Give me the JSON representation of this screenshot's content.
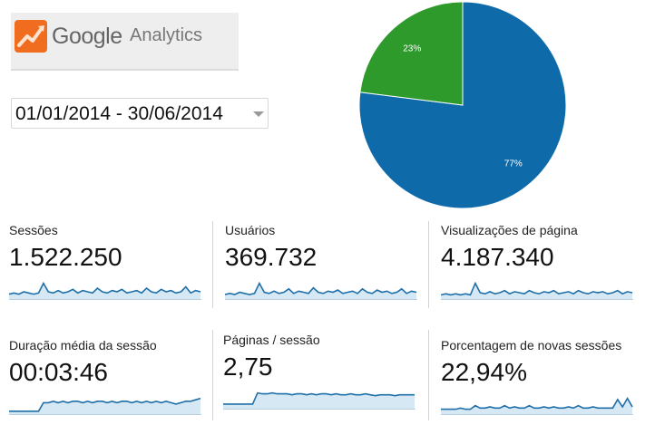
{
  "logo": {
    "google": "Google",
    "analytics": "Analytics"
  },
  "date_range": {
    "value": "01/01/2014 - 30/06/2014"
  },
  "pie": {
    "slices": [
      {
        "label": "77%",
        "value": 77,
        "color": "#0f6aaa"
      },
      {
        "label": "23%",
        "value": 23,
        "color": "#2e9a2b"
      }
    ]
  },
  "metrics": [
    {
      "label": "Sessões",
      "value": "1.522.250",
      "spark": [
        4,
        5,
        4,
        6,
        5,
        4,
        5,
        13,
        6,
        5,
        7,
        5,
        6,
        8,
        5,
        7,
        6,
        5,
        9,
        6,
        5,
        7,
        6,
        8,
        5,
        6,
        7,
        5,
        9,
        6,
        5,
        8,
        6,
        7,
        5,
        6,
        10,
        5,
        7,
        6
      ]
    },
    {
      "label": "Usuários",
      "value": "369.732",
      "spark": [
        4,
        5,
        4,
        6,
        5,
        4,
        5,
        14,
        6,
        5,
        7,
        5,
        6,
        9,
        5,
        7,
        6,
        5,
        10,
        6,
        5,
        7,
        6,
        8,
        5,
        6,
        7,
        5,
        9,
        6,
        5,
        8,
        6,
        7,
        5,
        6,
        9,
        5,
        7,
        6
      ]
    },
    {
      "label": "Visualizações de página",
      "value": "4.187.340",
      "spark": [
        4,
        5,
        4,
        5,
        4,
        5,
        4,
        15,
        6,
        5,
        7,
        5,
        6,
        8,
        5,
        7,
        6,
        5,
        8,
        6,
        5,
        7,
        6,
        8,
        5,
        6,
        7,
        5,
        8,
        6,
        5,
        7,
        6,
        7,
        5,
        6,
        8,
        5,
        7,
        6
      ]
    },
    {
      "label": "Duração média da sessão",
      "value": "00:03:46",
      "spark": [
        2,
        2,
        2,
        2,
        2,
        2,
        2,
        8,
        8,
        9,
        8,
        9,
        8,
        9,
        9,
        8,
        9,
        8,
        9,
        9,
        8,
        9,
        8,
        9,
        9,
        8,
        9,
        8,
        9,
        8,
        9,
        8,
        9,
        8,
        7,
        8,
        9,
        9,
        10,
        11
      ]
    },
    {
      "label": "Páginas / sessão",
      "value": "2,75",
      "spark": [
        5,
        5,
        5,
        5,
        5,
        5,
        5,
        17,
        16,
        16,
        17,
        16,
        16,
        16,
        15,
        16,
        16,
        15,
        16,
        15,
        16,
        16,
        15,
        16,
        15,
        15,
        16,
        15,
        15,
        16,
        15,
        14,
        15,
        15,
        15,
        14,
        15,
        15,
        15,
        15
      ]
    },
    {
      "label": "Porcentagem de novas sessões",
      "value": "22,94%",
      "spark": [
        4,
        4,
        4,
        4,
        5,
        4,
        4,
        7,
        5,
        5,
        6,
        5,
        5,
        7,
        5,
        6,
        5,
        5,
        7,
        5,
        5,
        6,
        5,
        6,
        5,
        5,
        6,
        5,
        7,
        5,
        5,
        6,
        5,
        5,
        5,
        5,
        12,
        6,
        13,
        6
      ]
    }
  ]
}
